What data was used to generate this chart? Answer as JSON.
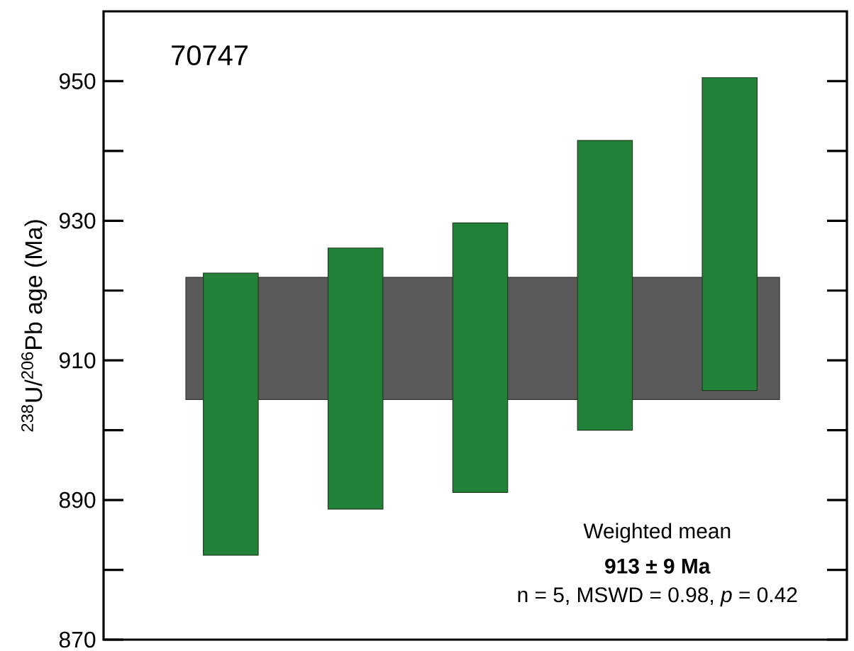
{
  "chart_data": {
    "type": "bar",
    "title": "70747",
    "ylabel": "$^{238}$U/$^{206}$Pb age (Ma)",
    "categories": [
      null,
      null,
      null,
      null,
      null
    ],
    "base": [
      882.1,
      888.7,
      891.1,
      900.0,
      905.7
    ],
    "values": [
      40.4,
      37.4,
      38.6,
      41.5,
      44.8
    ],
    "color": "#23823a",
    "ylim": [
      870,
      960
    ],
    "yticks": [
      870,
      {
        "value": 880,
        "label": null
      },
      890,
      {
        "value": 900,
        "label": null
      },
      910,
      {
        "value": 920,
        "label": null
      },
      930,
      {
        "value": 940,
        "label": null
      },
      950
    ],
    "bands": [
      {
        "axis": "y",
        "from": 904.4,
        "to": 921.9,
        "color": "#5a5a5a"
      }
    ],
    "annotations": [
      "Weighted mean",
      "913 ± 9 Ma",
      "n = 5, MSWD = 0.98, *p* = 0.42"
    ],
    "grid": false,
    "tick_labels": "y"
  }
}
